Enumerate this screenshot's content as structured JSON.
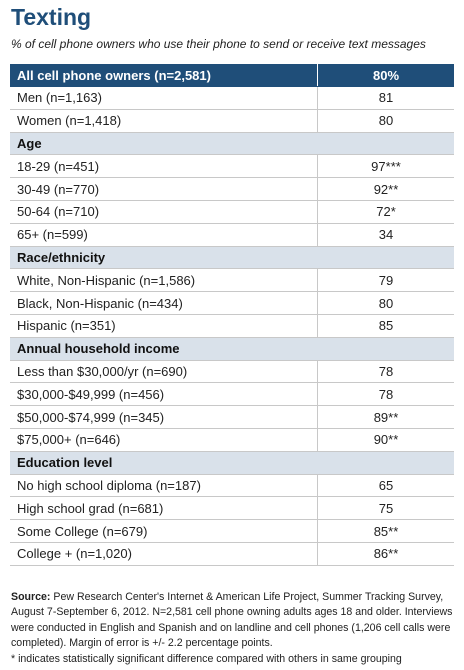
{
  "title": "Texting",
  "subtitle": "% of cell phone owners who use their phone to send or receive text messages",
  "header": {
    "label": "All cell phone owners (n=2,581)",
    "value": "80%"
  },
  "rows": [
    {
      "type": "data",
      "label": "Men (n=1,163)",
      "value": "81"
    },
    {
      "type": "data",
      "label": "Women (n=1,418)",
      "value": "80"
    },
    {
      "type": "group",
      "label": "Age"
    },
    {
      "type": "data",
      "label": "18-29 (n=451)",
      "value": "97***"
    },
    {
      "type": "data",
      "label": "30-49 (n=770)",
      "value": "92**"
    },
    {
      "type": "data",
      "label": "50-64 (n=710)",
      "value": "72*"
    },
    {
      "type": "data",
      "label": "65+ (n=599)",
      "value": "34"
    },
    {
      "type": "group",
      "label": "Race/ethnicity"
    },
    {
      "type": "data",
      "label": "White, Non-Hispanic (n=1,586)",
      "value": "79"
    },
    {
      "type": "data",
      "label": "Black, Non-Hispanic (n=434)",
      "value": "80"
    },
    {
      "type": "data",
      "label": "Hispanic (n=351)",
      "value": "85"
    },
    {
      "type": "group",
      "label": "Annual household income"
    },
    {
      "type": "data",
      "label": "Less than $30,000/yr (n=690)",
      "value": "78"
    },
    {
      "type": "data",
      "label": "$30,000-$49,999 (n=456)",
      "value": "78"
    },
    {
      "type": "data",
      "label": "$50,000-$74,999 (n=345)",
      "value": "89**"
    },
    {
      "type": "data",
      "label": "$75,000+ (n=646)",
      "value": "90**"
    },
    {
      "type": "group",
      "label": "Education level"
    },
    {
      "type": "data",
      "label": "No high school diploma (n=187)",
      "value": "65"
    },
    {
      "type": "data",
      "label": "High school grad (n=681)",
      "value": "75"
    },
    {
      "type": "data",
      "label": "Some College (n=679)",
      "value": "85**"
    },
    {
      "type": "data",
      "label": "College + (n=1,020)",
      "value": "86**"
    }
  ],
  "source": {
    "label": "Source:",
    "text": "Pew Research Center's Internet & American Life Project, Summer Tracking Survey, August 7-September 6, 2012. N=2,581 cell phone owning adults ages 18 and older. Interviews were conducted in English and Spanish and on landline and cell phones (1,206 cell calls were completed). Margin of error is +/- 2.2 percentage points."
  },
  "footnote": "* indicates statistically significant difference compared with others in same grouping",
  "colors": {
    "header_bg": "#1f4e79",
    "group_bg": "#d9e1ea",
    "title": "#1f4e79"
  },
  "chart_data": {
    "type": "table",
    "title": "Texting",
    "subtitle": "% of cell phone owners who use their phone to send or receive text messages",
    "overall": {
      "label": "All cell phone owners (n=2,581)",
      "value": 80
    },
    "groups": [
      {
        "name": "",
        "items": [
          {
            "label": "Men (n=1,163)",
            "value": 81,
            "flag": ""
          },
          {
            "label": "Women (n=1,418)",
            "value": 80,
            "flag": ""
          }
        ]
      },
      {
        "name": "Age",
        "items": [
          {
            "label": "18-29 (n=451)",
            "value": 97,
            "flag": "***"
          },
          {
            "label": "30-49 (n=770)",
            "value": 92,
            "flag": "**"
          },
          {
            "label": "50-64 (n=710)",
            "value": 72,
            "flag": "*"
          },
          {
            "label": "65+ (n=599)",
            "value": 34,
            "flag": ""
          }
        ]
      },
      {
        "name": "Race/ethnicity",
        "items": [
          {
            "label": "White, Non-Hispanic (n=1,586)",
            "value": 79,
            "flag": ""
          },
          {
            "label": "Black, Non-Hispanic (n=434)",
            "value": 80,
            "flag": ""
          },
          {
            "label": "Hispanic (n=351)",
            "value": 85,
            "flag": ""
          }
        ]
      },
      {
        "name": "Annual household income",
        "items": [
          {
            "label": "Less than $30,000/yr (n=690)",
            "value": 78,
            "flag": ""
          },
          {
            "label": "$30,000-$49,999 (n=456)",
            "value": 78,
            "flag": ""
          },
          {
            "label": "$50,000-$74,999 (n=345)",
            "value": 89,
            "flag": "**"
          },
          {
            "label": "$75,000+ (n=646)",
            "value": 90,
            "flag": "**"
          }
        ]
      },
      {
        "name": "Education level",
        "items": [
          {
            "label": "No high school diploma (n=187)",
            "value": 65,
            "flag": ""
          },
          {
            "label": "High school grad (n=681)",
            "value": 75,
            "flag": ""
          },
          {
            "label": "Some College (n=679)",
            "value": 85,
            "flag": "**"
          },
          {
            "label": "College + (n=1,020)",
            "value": 86,
            "flag": "**"
          }
        ]
      }
    ]
  }
}
